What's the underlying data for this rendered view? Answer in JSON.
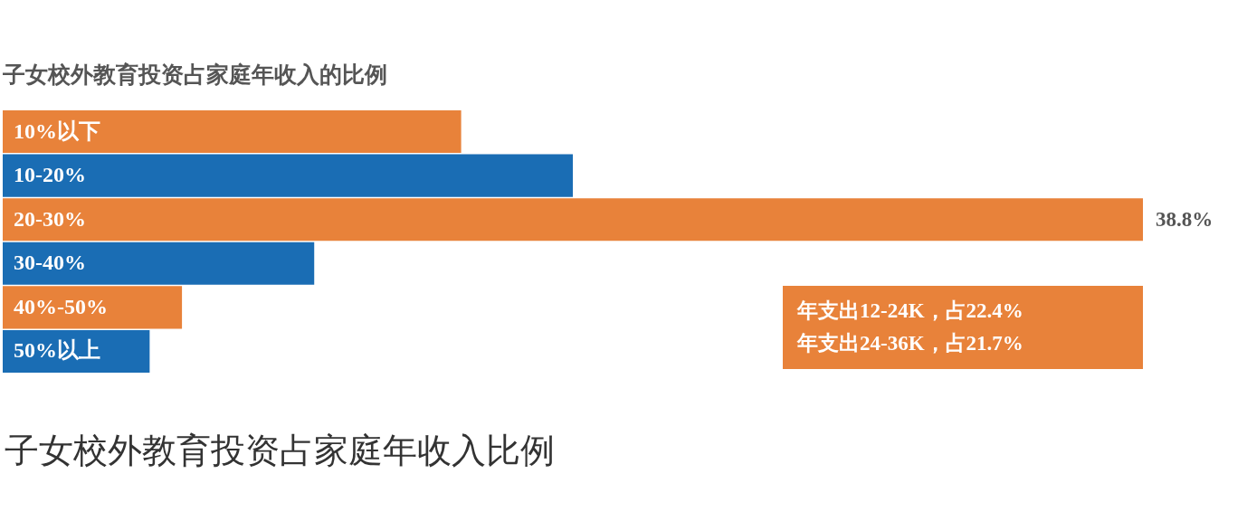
{
  "chart_data": {
    "type": "bar",
    "orientation": "horizontal",
    "title": "子女校外教育投资占家庭年收入的比例",
    "categories": [
      "10%以下",
      "10-20%",
      "20-30%",
      "30-40%",
      "40%-50%",
      "50%以上"
    ],
    "values": [
      15.6,
      19.4,
      38.8,
      10.6,
      6.1,
      5.0
    ],
    "colors": [
      "#e8823a",
      "#1a6db4",
      "#e8823a",
      "#1a6db4",
      "#e8823a",
      "#1a6db4"
    ],
    "value_labels": [
      null,
      null,
      "38.8%",
      null,
      null,
      null
    ],
    "annotations": [
      "年支出12-24K，占22.4%",
      "年支出24-36K，占21.7%",
      "子女校外教育投资占家庭年收入比例"
    ]
  }
}
